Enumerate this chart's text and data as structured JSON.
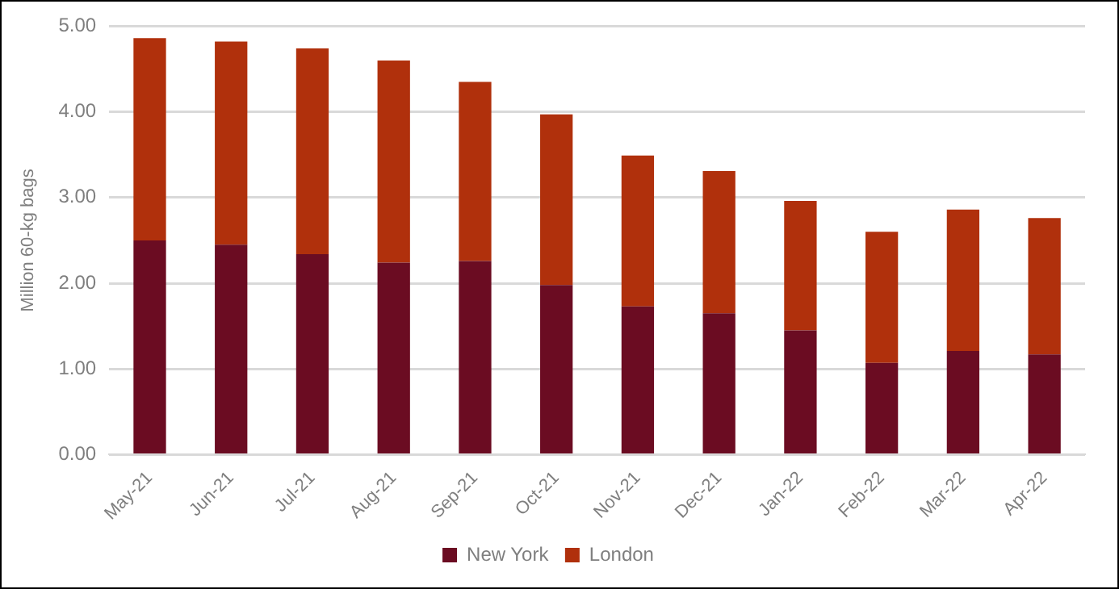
{
  "chart_data": {
    "type": "bar",
    "stacked": true,
    "ylabel": "Million 60-kg bags",
    "categories": [
      "May-21",
      "Jun-21",
      "Jul-21",
      "Aug-21",
      "Sep-21",
      "Oct-21",
      "Nov-21",
      "Dec-21",
      "Jan-22",
      "Feb-22",
      "Mar-22",
      "Apr-22"
    ],
    "series": [
      {
        "name": "New York",
        "color": "#6b0c22",
        "values": [
          2.5,
          2.45,
          2.34,
          2.24,
          2.26,
          1.98,
          1.73,
          1.65,
          1.45,
          1.07,
          1.21,
          1.17
        ]
      },
      {
        "name": "London",
        "color": "#b0300c",
        "values": [
          2.36,
          2.37,
          2.4,
          2.36,
          2.09,
          1.99,
          1.76,
          1.66,
          1.51,
          1.53,
          1.65,
          1.59
        ]
      }
    ],
    "ylim": [
      0,
      5
    ],
    "yticks": [
      {
        "value": 0,
        "label": "0.00"
      },
      {
        "value": 1,
        "label": "1.00"
      },
      {
        "value": 2,
        "label": "2.00"
      },
      {
        "value": 3,
        "label": "3.00"
      },
      {
        "value": 4,
        "label": "4.00"
      },
      {
        "value": 5,
        "label": "5.00"
      }
    ],
    "grid": "y",
    "legend": "bottom"
  }
}
